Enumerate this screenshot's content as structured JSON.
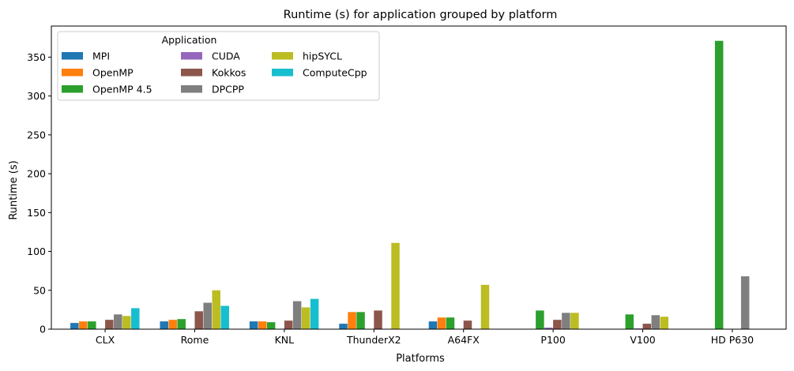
{
  "chart_data": {
    "type": "bar",
    "title": "Runtime (s) for application grouped by platform",
    "xlabel": "Platforms",
    "ylabel": "Runtime (s)",
    "ylim": [
      0,
      390
    ],
    "yticks": [
      0,
      50,
      100,
      150,
      200,
      250,
      300,
      350
    ],
    "grid": false,
    "legend": {
      "title": "Application",
      "placement": "top-left",
      "columns": 3
    },
    "categories": [
      "CLX",
      "Rome",
      "KNL",
      "ThunderX2",
      "A64FX",
      "P100",
      "V100",
      "HD P630"
    ],
    "series": [
      {
        "name": "MPI",
        "color": "#1f77b4",
        "values": [
          8,
          10,
          10,
          7,
          10,
          null,
          null,
          null
        ]
      },
      {
        "name": "OpenMP",
        "color": "#ff7f0e",
        "values": [
          10,
          12,
          10,
          22,
          15,
          null,
          null,
          null
        ]
      },
      {
        "name": "OpenMP 4.5",
        "color": "#2ca02c",
        "values": [
          10,
          13,
          9,
          22,
          15,
          24,
          19,
          371
        ]
      },
      {
        "name": "CUDA",
        "color": "#9467bd",
        "values": [
          null,
          null,
          null,
          null,
          null,
          2,
          1,
          null
        ]
      },
      {
        "name": "Kokkos",
        "color": "#8c564b",
        "values": [
          12,
          23,
          11,
          24,
          11,
          12,
          7,
          null
        ]
      },
      {
        "name": "DPCPP",
        "color": "#7f7f7f",
        "values": [
          19,
          34,
          36,
          null,
          null,
          21,
          18,
          68
        ]
      },
      {
        "name": "hipSYCL",
        "color": "#bcbd22",
        "values": [
          17,
          50,
          28,
          111,
          57,
          21,
          16,
          null
        ]
      },
      {
        "name": "ComputeCpp",
        "color": "#17becf",
        "values": [
          27,
          30,
          39,
          null,
          null,
          null,
          null,
          null
        ]
      }
    ]
  }
}
